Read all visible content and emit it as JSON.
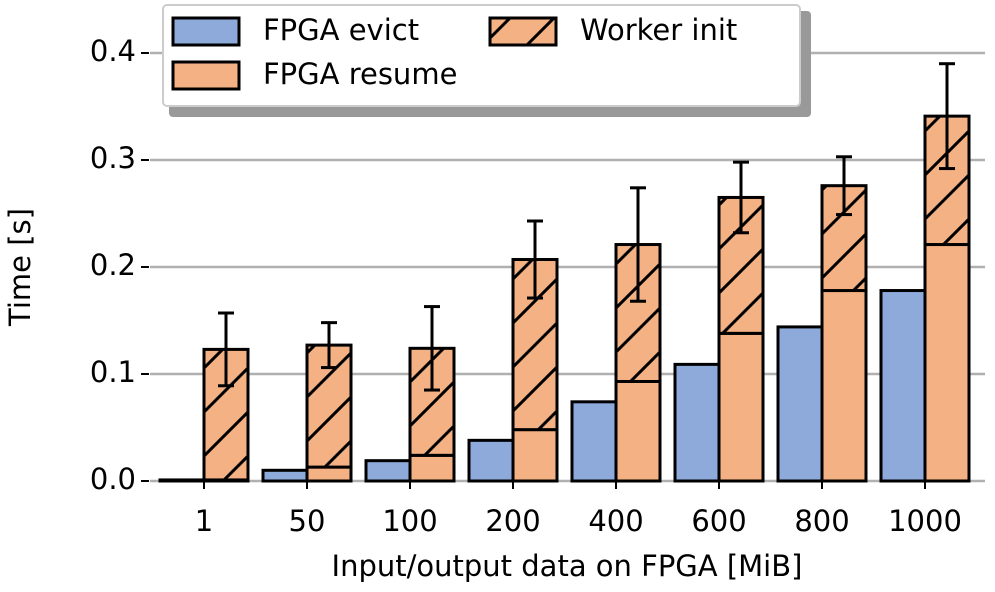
{
  "chart_data": {
    "type": "bar",
    "ylabel": "Time [s]",
    "xlabel": "Input/output data on FPGA [MiB]",
    "categories": [
      "1",
      "50",
      "100",
      "200",
      "400",
      "600",
      "800",
      "1000"
    ],
    "series": [
      {
        "name": "FPGA evict",
        "color": "#8eaadb",
        "values": [
          0.001,
          0.01,
          0.019,
          0.038,
          0.074,
          0.109,
          0.144,
          0.178
        ]
      },
      {
        "name": "FPGA resume",
        "color": "#f4b183",
        "values": [
          0.001,
          0.013,
          0.024,
          0.048,
          0.093,
          0.138,
          0.178,
          0.221
        ]
      },
      {
        "name": "Worker init",
        "color": "#f4b183",
        "hatch": "/",
        "stacked_on": "FPGA resume",
        "values": [
          0.122,
          0.114,
          0.1,
          0.159,
          0.128,
          0.127,
          0.098,
          0.12
        ],
        "errors": [
          0.034,
          0.021,
          0.039,
          0.036,
          0.053,
          0.033,
          0.027,
          0.049
        ]
      }
    ],
    "ylim": [
      0,
      0.4
    ],
    "yticks": [
      {
        "value": 0,
        "label": "0.0"
      },
      0.1,
      0.2,
      0.3,
      0.4
    ],
    "grid": true,
    "legend": "upper left"
  }
}
